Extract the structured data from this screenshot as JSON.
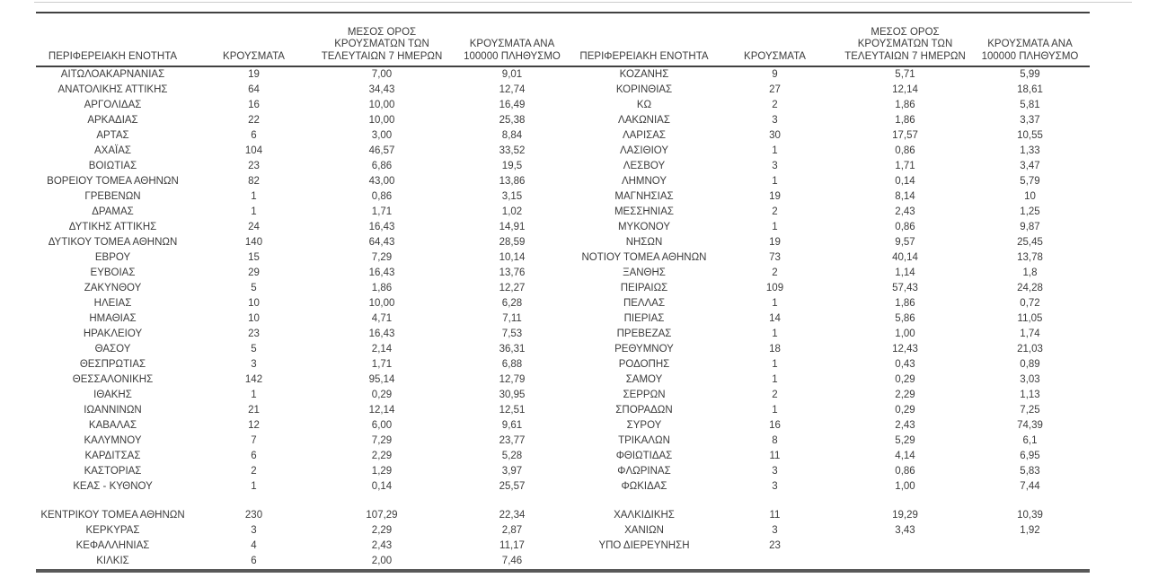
{
  "table": {
    "header": {
      "region": "ΠΕΡΙΦΕΡΕΙΑΚΗ ΕΝΟΤΗΤΑ",
      "cases": "ΚΡΟΥΣΜΑΤΑ",
      "avg7": "ΜΕΣΟΣ ΟΡΟΣ\nΚΡΟΥΣΜΑΤΩΝ ΤΩΝ\nΤΕΛΕΥΤΑΙΩΝ 7 ΗΜΕΡΩΝ",
      "per100k": "ΚΡΟΥΣΜΑΤΑ ΑΝΑ\n100000 ΠΛΗΘΥΣΜΟ"
    },
    "rows": [
      {
        "cells": [
          "ΑΙΤΩΛΟΑΚΑΡΝΑΝΙΑΣ",
          "19",
          "7,00",
          "9,01",
          "ΚΟΖΑΝΗΣ",
          "9",
          "5,71",
          "5,99"
        ]
      },
      {
        "cells": [
          "ΑΝΑΤΟΛΙΚΗΣ ΑΤΤΙΚΗΣ",
          "64",
          "34,43",
          "12,74",
          "ΚΟΡΙΝΘΙΑΣ",
          "27",
          "12,14",
          "18,61"
        ]
      },
      {
        "cells": [
          "ΑΡΓΟΛΙΔΑΣ",
          "16",
          "10,00",
          "16,49",
          "ΚΩ",
          "2",
          "1,86",
          "5,81"
        ]
      },
      {
        "cells": [
          "ΑΡΚΑΔΙΑΣ",
          "22",
          "10,00",
          "25,38",
          "ΛΑΚΩΝΙΑΣ",
          "3",
          "1,86",
          "3,37"
        ]
      },
      {
        "cells": [
          "ΑΡΤΑΣ",
          "6",
          "3,00",
          "8,84",
          "ΛΑΡΙΣΑΣ",
          "30",
          "17,57",
          "10,55"
        ]
      },
      {
        "cells": [
          "ΑΧΑΪΑΣ",
          "104",
          "46,57",
          "33,52",
          "ΛΑΣΙΘΙΟΥ",
          "1",
          "0,86",
          "1,33"
        ]
      },
      {
        "cells": [
          "ΒΟΙΩΤΙΑΣ",
          "23",
          "6,86",
          "19,5",
          "ΛΕΣΒΟΥ",
          "3",
          "1,71",
          "3,47"
        ]
      },
      {
        "cells": [
          "ΒΟΡΕΙΟΥ ΤΟΜΕΑ ΑΘΗΝΩΝ",
          "82",
          "43,00",
          "13,86",
          "ΛΗΜΝΟΥ",
          "1",
          "0,14",
          "5,79"
        ]
      },
      {
        "cells": [
          "ΓΡΕΒΕΝΩΝ",
          "1",
          "0,86",
          "3,15",
          "ΜΑΓΝΗΣΙΑΣ",
          "19",
          "8,14",
          "10"
        ]
      },
      {
        "cells": [
          "ΔΡΑΜΑΣ",
          "1",
          "1,71",
          "1,02",
          "ΜΕΣΣΗΝΙΑΣ",
          "2",
          "2,43",
          "1,25"
        ]
      },
      {
        "cells": [
          "ΔΥΤΙΚΗΣ ΑΤΤΙΚΗΣ",
          "24",
          "16,43",
          "14,91",
          "ΜΥΚΟΝΟΥ",
          "1",
          "0,86",
          "9,87"
        ]
      },
      {
        "cells": [
          "ΔΥΤΙΚΟΥ ΤΟΜΕΑ ΑΘΗΝΩΝ",
          "140",
          "64,43",
          "28,59",
          "ΝΗΣΩΝ",
          "19",
          "9,57",
          "25,45"
        ]
      },
      {
        "cells": [
          "ΕΒΡΟΥ",
          "15",
          "7,29",
          "10,14",
          "ΝΟΤΙΟΥ ΤΟΜΕΑ ΑΘΗΝΩΝ",
          "73",
          "40,14",
          "13,78"
        ]
      },
      {
        "cells": [
          "ΕΥΒΟΙΑΣ",
          "29",
          "16,43",
          "13,76",
          "ΞΑΝΘΗΣ",
          "2",
          "1,14",
          "1,8"
        ]
      },
      {
        "cells": [
          "ΖΑΚΥΝΘΟΥ",
          "5",
          "1,86",
          "12,27",
          "ΠΕΙΡΑΙΩΣ",
          "109",
          "57,43",
          "24,28"
        ]
      },
      {
        "cells": [
          "ΗΛΕΙΑΣ",
          "10",
          "10,00",
          "6,28",
          "ΠΕΛΛΑΣ",
          "1",
          "1,86",
          "0,72"
        ]
      },
      {
        "cells": [
          "ΗΜΑΘΙΑΣ",
          "10",
          "4,71",
          "7,11",
          "ΠΙΕΡΙΑΣ",
          "14",
          "5,86",
          "11,05"
        ]
      },
      {
        "cells": [
          "ΗΡΑΚΛΕΙΟΥ",
          "23",
          "16,43",
          "7,53",
          "ΠΡΕΒΕΖΑΣ",
          "1",
          "1,00",
          "1,74"
        ]
      },
      {
        "cells": [
          "ΘΑΣΟΥ",
          "5",
          "2,14",
          "36,31",
          "ΡΕΘΥΜΝΟΥ",
          "18",
          "12,43",
          "21,03"
        ]
      },
      {
        "cells": [
          "ΘΕΣΠΡΩΤΙΑΣ",
          "3",
          "1,71",
          "6,88",
          "ΡΟΔΟΠΗΣ",
          "1",
          "0,43",
          "0,89"
        ]
      },
      {
        "cells": [
          "ΘΕΣΣΑΛΟΝΙΚΗΣ",
          "142",
          "95,14",
          "12,79",
          "ΣΑΜΟΥ",
          "1",
          "0,29",
          "3,03"
        ]
      },
      {
        "cells": [
          "ΙΘΑΚΗΣ",
          "1",
          "0,29",
          "30,95",
          "ΣΕΡΡΩΝ",
          "2",
          "2,29",
          "1,13"
        ]
      },
      {
        "cells": [
          "ΙΩΑΝΝΙΝΩΝ",
          "21",
          "12,14",
          "12,51",
          "ΣΠΟΡΑΔΩΝ",
          "1",
          "0,29",
          "7,25"
        ]
      },
      {
        "cells": [
          "ΚΑΒΑΛΑΣ",
          "12",
          "6,00",
          "9,61",
          "ΣΥΡΟΥ",
          "16",
          "2,43",
          "74,39"
        ]
      },
      {
        "cells": [
          "ΚΑΛΥΜΝΟΥ",
          "7",
          "7,29",
          "23,77",
          "ΤΡΙΚΑΛΩΝ",
          "8",
          "5,29",
          "6,1"
        ]
      },
      {
        "cells": [
          "ΚΑΡΔΙΤΣΑΣ",
          "6",
          "2,29",
          "5,28",
          "ΦΘΙΩΤΙΔΑΣ",
          "11",
          "4,14",
          "6,95"
        ]
      },
      {
        "cells": [
          "ΚΑΣΤΟΡΙΑΣ",
          "2",
          "1,29",
          "3,97",
          "ΦΛΩΡΙΝΑΣ",
          "3",
          "0,86",
          "5,83"
        ]
      },
      {
        "cells": [
          "ΚΕΑΣ - ΚΥΘΝΟΥ",
          "1",
          "0,14",
          "25,57",
          "ΦΩΚΙΔΑΣ",
          "3",
          "1,00",
          "7,44"
        ]
      },
      {
        "spacer": true
      },
      {
        "cells": [
          "ΚΕΝΤΡΙΚΟΥ ΤΟΜΕΑ ΑΘΗΝΩΝ",
          "230",
          "107,29",
          "22,34",
          "ΧΑΛΚΙΔΙΚΗΣ",
          "11",
          "19,29",
          "10,39"
        ]
      },
      {
        "cells": [
          "ΚΕΡΚΥΡΑΣ",
          "3",
          "2,29",
          "2,87",
          "ΧΑΝΙΩΝ",
          "3",
          "3,43",
          "1,92"
        ]
      },
      {
        "cells": [
          "ΚΕΦΑΛΛΗΝΙΑΣ",
          "4",
          "2,43",
          "11,17",
          "ΥΠΟ ΔΙΕΡΕΥΝΗΣΗ",
          "23",
          "",
          ""
        ]
      },
      {
        "cells": [
          "ΚΙΛΚΙΣ",
          "6",
          "2,00",
          "7,46",
          "",
          "",
          "",
          ""
        ]
      }
    ]
  },
  "colors": {
    "text": "#3c3c3c",
    "rule_dark": "#414141",
    "rule_bottom": "#595959",
    "rule_light": "#cccccc",
    "background": "#ffffff"
  }
}
